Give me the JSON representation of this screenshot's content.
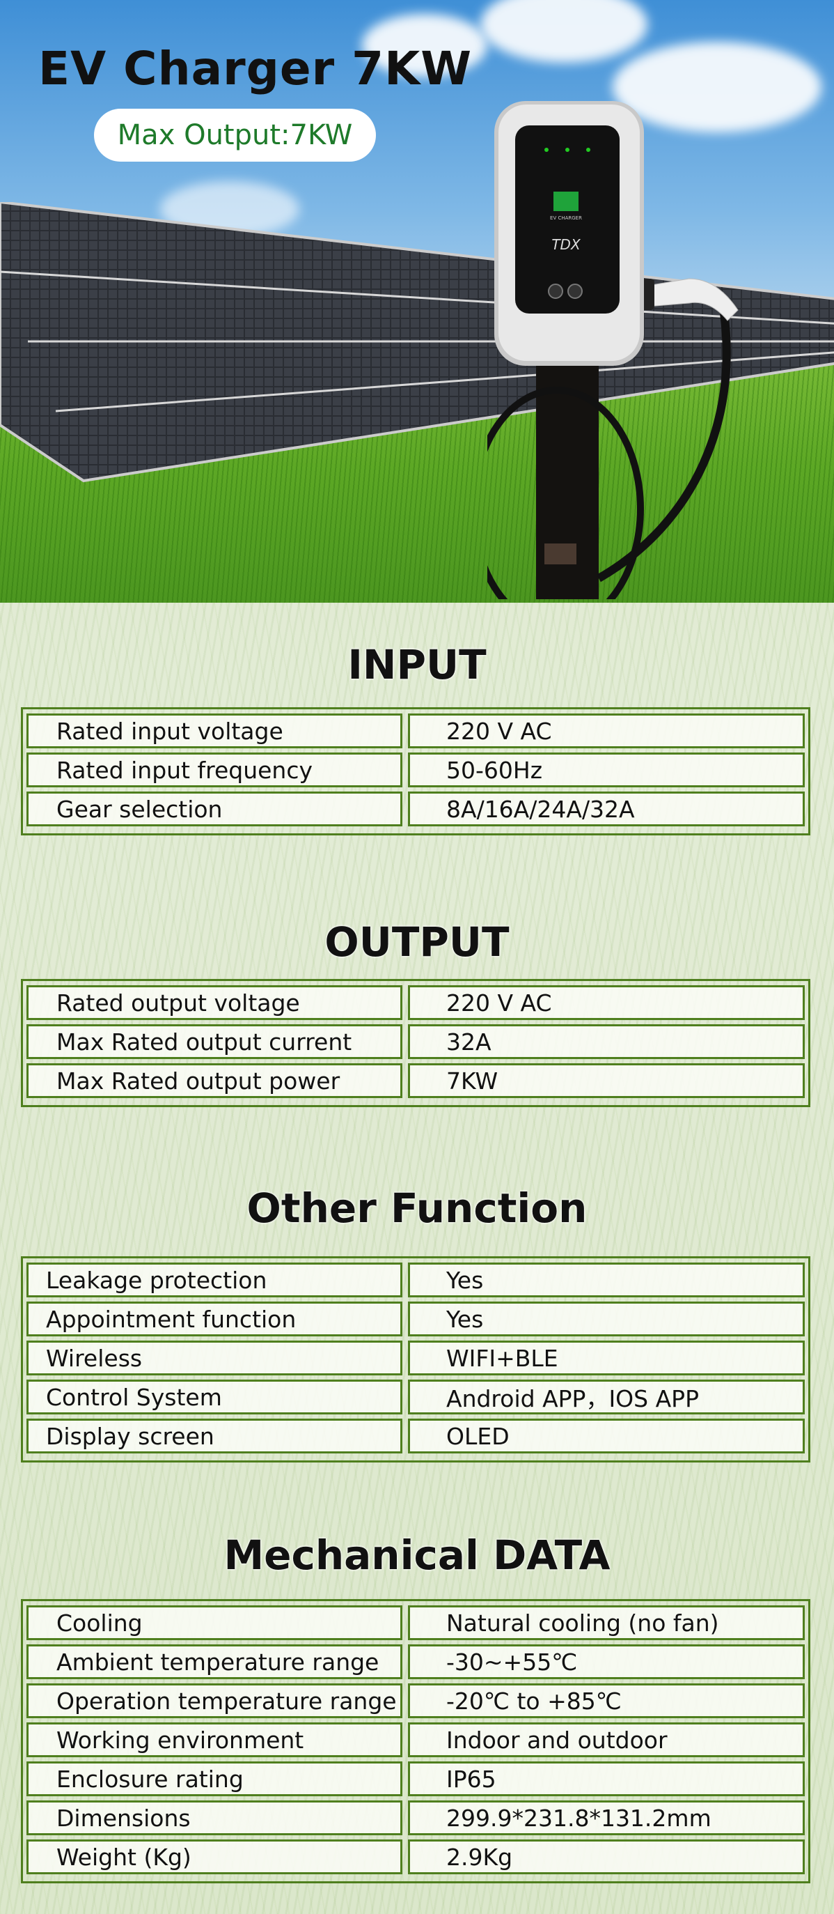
{
  "hero": {
    "title": "EV Charger 7KW",
    "badge": "Max Output:7KW",
    "charger_screen_label": "EV CHARGER",
    "brand_logo": "TDX",
    "colors": {
      "badge_text": "#1e7a2a",
      "screen_green": "#1fa33a"
    }
  },
  "sections": [
    {
      "title": "INPUT",
      "rows": [
        [
          "Rated input voltage",
          "220 V AC"
        ],
        [
          "Rated input frequency",
          "50-60Hz"
        ],
        [
          "Gear selection",
          "8A/16A/24A/32A"
        ]
      ]
    },
    {
      "title": "OUTPUT",
      "rows": [
        [
          "Rated output voltage",
          "220 V AC"
        ],
        [
          "Max Rated output current",
          "32A"
        ],
        [
          "Max Rated output power",
          "7KW"
        ]
      ]
    },
    {
      "title": "Other Function",
      "rows": [
        [
          "Leakage protection",
          "Yes"
        ],
        [
          "Appointment function",
          "Yes"
        ],
        [
          "Wireless",
          "WIFI+BLE"
        ],
        [
          "Control System",
          "Android APP，IOS APP"
        ],
        [
          "Display screen",
          "OLED"
        ]
      ]
    },
    {
      "title": "Mechanical DATA",
      "rows": [
        [
          "Cooling",
          "Natural cooling (no fan)"
        ],
        [
          "Ambient temperature range",
          "-30~+55℃"
        ],
        [
          "Operation temperature range",
          "-20℃ to +85℃"
        ],
        [
          "Working environment",
          "Indoor and outdoor"
        ],
        [
          "Enclosure rating",
          "IP65"
        ],
        [
          "Dimensions",
          "299.9*231.8*131.2mm"
        ],
        [
          "Weight (Kg)",
          "2.9Kg"
        ]
      ]
    }
  ],
  "table_border_color": "#4f7f1e"
}
